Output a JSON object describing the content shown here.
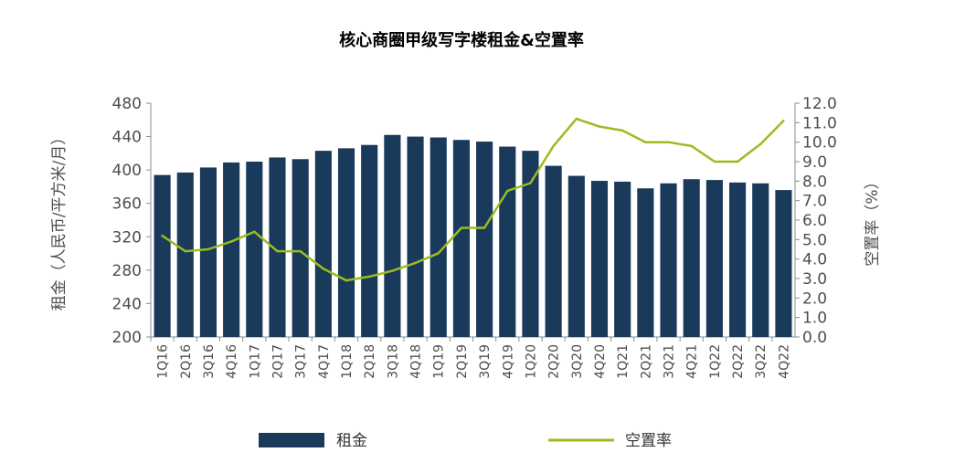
{
  "chart_data": {
    "type": "bar+line",
    "title": "核心商圈甲级写字楼租金&空置率",
    "categories": [
      "1Q16",
      "2Q16",
      "3Q16",
      "4Q16",
      "1Q17",
      "2Q17",
      "3Q17",
      "4Q17",
      "1Q18",
      "2Q18",
      "3Q18",
      "4Q18",
      "1Q19",
      "2Q19",
      "3Q19",
      "4Q19",
      "1Q20",
      "2Q20",
      "3Q20",
      "4Q20",
      "1Q21",
      "2Q21",
      "3Q21",
      "4Q21",
      "1Q22",
      "2Q22",
      "3Q22",
      "4Q22"
    ],
    "ylabel_left": "租金（人民币/平方米/月）",
    "ylabel_right": "空置率（%）",
    "ylim_left": [
      200,
      480
    ],
    "yticks_left": [
      "480",
      "440",
      "400",
      "360",
      "320",
      "280",
      "240",
      "200"
    ],
    "ylim_right": [
      0,
      12
    ],
    "yticks_right": [
      "12.0",
      "11.0",
      "10.0",
      "9.0",
      "8.0",
      "7.0",
      "6.0",
      "5.0",
      "4.0",
      "3.0",
      "2.0",
      "1.0",
      "0.0"
    ],
    "grid": false,
    "legend_position": "bottom",
    "series": [
      {
        "name": "租金",
        "type": "bar",
        "color": "#1a3a5c",
        "values": [
          394,
          397,
          403,
          409,
          410,
          415,
          413,
          423,
          426,
          430,
          442,
          440,
          439,
          436,
          434,
          428,
          423,
          405,
          393,
          387,
          386,
          378,
          384,
          389,
          388,
          385,
          384,
          376
        ]
      },
      {
        "name": "空置率",
        "type": "line",
        "color": "#9dbb1e",
        "values": [
          5.2,
          4.4,
          4.5,
          4.9,
          5.4,
          4.4,
          4.4,
          3.5,
          2.9,
          3.1,
          3.4,
          3.8,
          4.3,
          5.6,
          5.6,
          7.5,
          7.9,
          9.8,
          11.2,
          10.8,
          10.6,
          10.0,
          10.0,
          9.8,
          9.0,
          9.0,
          9.9,
          11.1
        ]
      }
    ]
  }
}
